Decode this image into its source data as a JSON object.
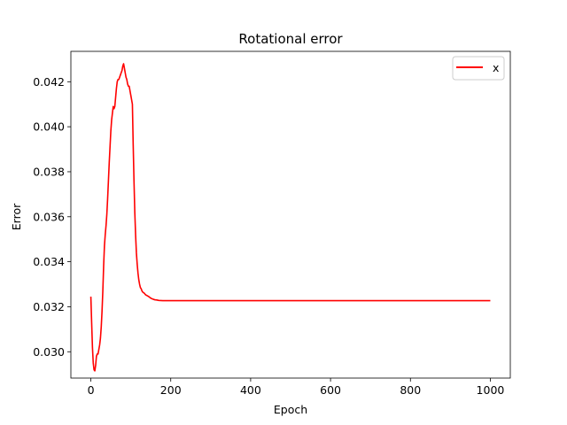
{
  "chart_data": {
    "type": "line",
    "title": "Rotational error",
    "xlabel": "Epoch",
    "ylabel": "Error",
    "xlim": [
      -50,
      1050
    ],
    "ylim": [
      0.02883,
      0.04335
    ],
    "xticks": [
      0,
      200,
      400,
      600,
      800,
      1000
    ],
    "xtick_labels": [
      "0",
      "200",
      "400",
      "600",
      "800",
      "1000"
    ],
    "yticks": [
      0.03,
      0.032,
      0.034,
      0.036,
      0.038,
      0.04,
      0.042
    ],
    "ytick_labels": [
      "0.030",
      "0.032",
      "0.034",
      "0.036",
      "0.038",
      "0.040",
      "0.042"
    ],
    "grid": false,
    "legend_position": "upper right",
    "series": [
      {
        "name": "x",
        "color": "#ff0000",
        "x": [
          0,
          2,
          4,
          6,
          8,
          10,
          12,
          14,
          16,
          18,
          20,
          22,
          24,
          26,
          28,
          30,
          32,
          34,
          36,
          38,
          40,
          42,
          44,
          46,
          48,
          50,
          52,
          54,
          56,
          58,
          60,
          62,
          64,
          66,
          68,
          70,
          72,
          74,
          76,
          78,
          80,
          82,
          84,
          86,
          88,
          90,
          92,
          94,
          96,
          98,
          100,
          102,
          104,
          106,
          108,
          110,
          112,
          114,
          116,
          118,
          120,
          122,
          124,
          126,
          128,
          130,
          132,
          134,
          136,
          138,
          140,
          145,
          150,
          155,
          160,
          165,
          170,
          180,
          200,
          300,
          400,
          500,
          600,
          700,
          800,
          900,
          1000
        ],
        "y": [
          0.03245,
          0.0313,
          0.0302,
          0.0295,
          0.0292,
          0.02915,
          0.0294,
          0.0298,
          0.0299,
          0.0299,
          0.0301,
          0.0303,
          0.0306,
          0.0311,
          0.0318,
          0.0327,
          0.0338,
          0.0347,
          0.0352,
          0.0356,
          0.0361,
          0.0368,
          0.0376,
          0.0384,
          0.0391,
          0.0398,
          0.0403,
          0.0406,
          0.0409,
          0.0408,
          0.0409,
          0.0413,
          0.0417,
          0.042,
          0.0421,
          0.0421,
          0.0422,
          0.0423,
          0.0424,
          0.0425,
          0.0427,
          0.0428,
          0.0426,
          0.0424,
          0.0422,
          0.0421,
          0.0419,
          0.0418,
          0.0418,
          0.0416,
          0.0414,
          0.0412,
          0.041,
          0.0392,
          0.0376,
          0.0362,
          0.0352,
          0.0344,
          0.0339,
          0.0335,
          0.0332,
          0.033,
          0.03285,
          0.0328,
          0.0327,
          0.03265,
          0.03262,
          0.0326,
          0.03255,
          0.03252,
          0.0325,
          0.03245,
          0.03238,
          0.03234,
          0.03231,
          0.0323,
          0.03228,
          0.03227,
          0.03227,
          0.03227,
          0.03227,
          0.03227,
          0.03227,
          0.03227,
          0.03227,
          0.03227,
          0.03227
        ]
      }
    ]
  }
}
